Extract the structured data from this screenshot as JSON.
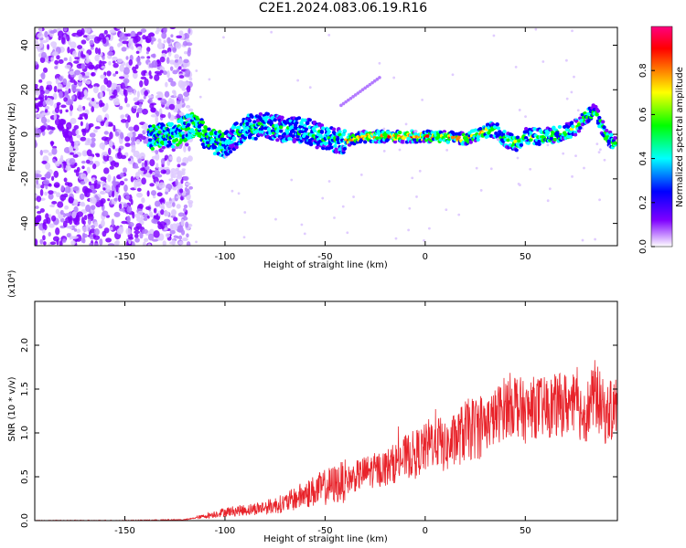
{
  "title": "C2E1.2024.083.06.19.R16",
  "chart_data": [
    {
      "type": "heatmap",
      "xlabel": "Height of straight line (km)",
      "ylabel": "Frequency (Hz)",
      "xlim": [
        -195,
        96
      ],
      "ylim": [
        -50,
        48
      ],
      "xticks": [
        "-150",
        "-100",
        "-50",
        "0",
        "50"
      ],
      "yticks": [
        "40",
        "20",
        "0",
        "-20",
        "-40"
      ],
      "colorbar": {
        "label": "Normalized spectral amplitude",
        "range": [
          0.0,
          1.0
        ],
        "ticks": [
          "0.0",
          "0.2",
          "0.4",
          "0.6",
          "0.8"
        ],
        "colors": [
          "#ffffff",
          "#7f00ff",
          "#0000ff",
          "#00ffff",
          "#00ff00",
          "#ffff00",
          "#ff7f00",
          "#ff0000",
          "#ff0080"
        ]
      },
      "ridge": {
        "x": [
          -135,
          -125,
          -115,
          -108,
          -100,
          -90,
          -80,
          -70,
          -60,
          -50,
          -40,
          -30,
          -20,
          -10,
          0,
          10,
          20,
          30,
          35,
          40,
          45,
          50,
          60,
          70,
          75,
          80,
          85,
          90,
          95
        ],
        "y": [
          -1,
          0,
          5,
          -3,
          -5,
          3,
          4,
          2,
          2,
          -2,
          -3,
          -1,
          -1,
          -1,
          -1,
          -1,
          -2,
          1,
          2,
          -2,
          -4,
          -1,
          -1,
          1,
          3,
          8,
          10,
          0,
          -5
        ]
      }
    },
    {
      "type": "line",
      "xlabel": "Height of straight line (km)",
      "ylabel": "SNR (10 * v/v)",
      "y_multiplier": "(x10⁴)",
      "xlim": [
        -195,
        96
      ],
      "ylim": [
        0,
        2.5
      ],
      "xticks": [
        "-150",
        "-100",
        "-50",
        "0",
        "50"
      ],
      "yticks": [
        "2.0",
        "1.5",
        "1.0",
        "0.5",
        "0.0"
      ],
      "series": [
        {
          "color": "#e8232a",
          "x": [
            -195,
            -150,
            -120,
            -110,
            -100,
            -90,
            -80,
            -70,
            -60,
            -50,
            -40,
            -30,
            -20,
            -10,
            0,
            5,
            10,
            20,
            30,
            35,
            40,
            45,
            50,
            55,
            60,
            70,
            75,
            80,
            85,
            90,
            95
          ],
          "y": [
            0.0,
            0.0,
            0.01,
            0.05,
            0.1,
            0.12,
            0.15,
            0.2,
            0.3,
            0.38,
            0.45,
            0.55,
            0.6,
            0.72,
            0.82,
            0.95,
            0.82,
            1.02,
            1.1,
            1.18,
            1.3,
            1.35,
            1.22,
            1.3,
            1.28,
            1.33,
            1.3,
            1.22,
            1.45,
            1.2,
            1.3
          ]
        }
      ]
    }
  ]
}
